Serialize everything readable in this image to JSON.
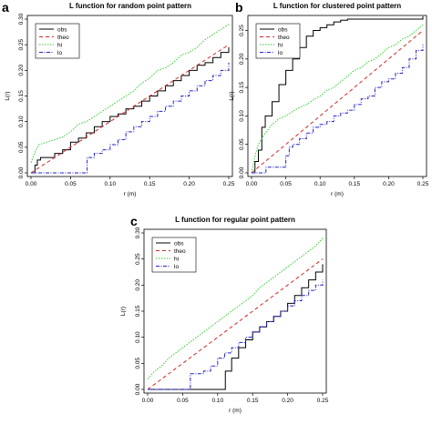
{
  "chart_data": [
    {
      "panel": "a",
      "type": "line",
      "title": "L function for random point pattern",
      "xlabel": "r (m)",
      "ylabel": "L(r)",
      "xlim": [
        0,
        0.25
      ],
      "ylim": [
        0,
        0.3
      ],
      "xticks": [
        "0.00",
        "0.05",
        "0.10",
        "0.15",
        "0.20",
        "0.25"
      ],
      "yticks": [
        "0.00",
        "0.05",
        "0.10",
        "0.15",
        "0.20",
        "0.25",
        "0.30"
      ],
      "legend_position": "top-left",
      "series": [
        {
          "name": "obs",
          "color": "#000000",
          "dash": "solid",
          "step": true,
          "x": [
            0,
            0.003,
            0.005,
            0.008,
            0.012,
            0.02,
            0.03,
            0.04,
            0.05,
            0.06,
            0.07,
            0.08,
            0.09,
            0.1,
            0.11,
            0.12,
            0.13,
            0.14,
            0.15,
            0.16,
            0.17,
            0.18,
            0.19,
            0.2,
            0.21,
            0.22,
            0.23,
            0.24,
            0.25
          ],
          "y": [
            0,
            0,
            0.015,
            0.025,
            0.03,
            0.03,
            0.038,
            0.045,
            0.06,
            0.068,
            0.078,
            0.09,
            0.1,
            0.11,
            0.115,
            0.125,
            0.13,
            0.14,
            0.15,
            0.16,
            0.17,
            0.18,
            0.19,
            0.2,
            0.21,
            0.215,
            0.225,
            0.235,
            0.245
          ]
        },
        {
          "name": "theo",
          "color": "#d62728",
          "dash": "4,3",
          "x": [
            0,
            0.25
          ],
          "y": [
            0,
            0.25
          ]
        },
        {
          "name": "hi",
          "color": "#33cc33",
          "dash": "1.5,1.5",
          "x": [
            0,
            0.005,
            0.01,
            0.02,
            0.03,
            0.04,
            0.05,
            0.06,
            0.07,
            0.08,
            0.09,
            0.1,
            0.11,
            0.12,
            0.13,
            0.14,
            0.15,
            0.16,
            0.17,
            0.18,
            0.19,
            0.2,
            0.21,
            0.22,
            0.23,
            0.24,
            0.25
          ],
          "y": [
            0.02,
            0.04,
            0.055,
            0.06,
            0.065,
            0.07,
            0.08,
            0.095,
            0.1,
            0.11,
            0.12,
            0.13,
            0.14,
            0.15,
            0.16,
            0.175,
            0.185,
            0.2,
            0.205,
            0.215,
            0.23,
            0.235,
            0.245,
            0.26,
            0.27,
            0.28,
            0.29
          ]
        },
        {
          "name": "lo",
          "color": "#2222cc",
          "dash": "4,1.5,1,1.5",
          "step": true,
          "x": [
            0,
            0.07,
            0.071,
            0.08,
            0.09,
            0.1,
            0.11,
            0.12,
            0.13,
            0.14,
            0.15,
            0.16,
            0.17,
            0.18,
            0.19,
            0.2,
            0.21,
            0.22,
            0.23,
            0.24,
            0.25
          ],
          "y": [
            0,
            0,
            0.03,
            0.038,
            0.045,
            0.055,
            0.065,
            0.08,
            0.09,
            0.1,
            0.11,
            0.12,
            0.13,
            0.14,
            0.15,
            0.16,
            0.17,
            0.18,
            0.19,
            0.2,
            0.215
          ]
        }
      ]
    },
    {
      "panel": "b",
      "type": "line",
      "title": "L function for clustered point pattern",
      "xlabel": "r (m)",
      "ylabel": "L(r)",
      "xlim": [
        0,
        0.25
      ],
      "ylim": [
        0,
        0.27
      ],
      "xticks": [
        "0.00",
        "0.05",
        "0.10",
        "0.15",
        "0.20",
        "0.25"
      ],
      "yticks": [
        "0.00",
        "0.05",
        "0.10",
        "0.15",
        "0.20",
        "0.25"
      ],
      "legend_position": "top-left",
      "series": [
        {
          "name": "obs",
          "color": "#000000",
          "dash": "solid",
          "step": true,
          "x": [
            0,
            0.005,
            0.01,
            0.015,
            0.02,
            0.03,
            0.04,
            0.05,
            0.06,
            0.07,
            0.08,
            0.09,
            0.1,
            0.11,
            0.12,
            0.13,
            0.14,
            0.15,
            0.2,
            0.245,
            0.25
          ],
          "y": [
            0,
            0.02,
            0.04,
            0.08,
            0.1,
            0.125,
            0.155,
            0.18,
            0.2,
            0.22,
            0.24,
            0.25,
            0.255,
            0.26,
            0.265,
            0.268,
            0.27,
            0.27,
            0.27,
            0.27,
            0.275
          ]
        },
        {
          "name": "theo",
          "color": "#d62728",
          "dash": "4,3",
          "x": [
            0,
            0.25
          ],
          "y": [
            0,
            0.25
          ]
        },
        {
          "name": "hi",
          "color": "#33cc33",
          "dash": "1.5,1.5",
          "x": [
            0,
            0.005,
            0.01,
            0.02,
            0.03,
            0.04,
            0.05,
            0.06,
            0.07,
            0.08,
            0.09,
            0.1,
            0.11,
            0.12,
            0.13,
            0.14,
            0.15,
            0.16,
            0.17,
            0.18,
            0.19,
            0.2,
            0.21,
            0.22,
            0.23,
            0.24,
            0.25
          ],
          "y": [
            0,
            0.03,
            0.05,
            0.07,
            0.085,
            0.095,
            0.1,
            0.108,
            0.115,
            0.12,
            0.128,
            0.135,
            0.145,
            0.15,
            0.16,
            0.17,
            0.18,
            0.185,
            0.195,
            0.2,
            0.21,
            0.22,
            0.225,
            0.235,
            0.24,
            0.25,
            0.26
          ]
        },
        {
          "name": "lo",
          "color": "#2222cc",
          "dash": "4,1.5,1,1.5",
          "step": true,
          "x": [
            0,
            0.02,
            0.021,
            0.04,
            0.05,
            0.055,
            0.06,
            0.07,
            0.08,
            0.09,
            0.1,
            0.11,
            0.12,
            0.13,
            0.14,
            0.15,
            0.16,
            0.17,
            0.18,
            0.19,
            0.2,
            0.21,
            0.22,
            0.23,
            0.24,
            0.25
          ],
          "y": [
            0,
            0,
            0.01,
            0.01,
            0.03,
            0.045,
            0.05,
            0.06,
            0.07,
            0.08,
            0.085,
            0.09,
            0.1,
            0.105,
            0.11,
            0.12,
            0.13,
            0.135,
            0.15,
            0.16,
            0.165,
            0.175,
            0.185,
            0.2,
            0.215,
            0.225
          ]
        }
      ]
    },
    {
      "panel": "c",
      "type": "line",
      "title": "L function for regular point pattern",
      "xlabel": "r (m)",
      "ylabel": "L(r)",
      "xlim": [
        0,
        0.25
      ],
      "ylim": [
        0,
        0.3
      ],
      "xticks": [
        "0.00",
        "0.05",
        "0.10",
        "0.15",
        "0.20",
        "0.25"
      ],
      "yticks": [
        "0.00",
        "0.05",
        "0.10",
        "0.15",
        "0.20",
        "0.25",
        "0.30"
      ],
      "legend_position": "top-left",
      "series": [
        {
          "name": "obs",
          "color": "#000000",
          "dash": "solid",
          "step": true,
          "x": [
            0,
            0.11,
            0.111,
            0.12,
            0.13,
            0.14,
            0.15,
            0.16,
            0.17,
            0.18,
            0.19,
            0.2,
            0.21,
            0.22,
            0.23,
            0.24,
            0.25
          ],
          "y": [
            0,
            0,
            0.035,
            0.06,
            0.08,
            0.095,
            0.11,
            0.12,
            0.13,
            0.14,
            0.15,
            0.165,
            0.18,
            0.195,
            0.21,
            0.225,
            0.24
          ]
        },
        {
          "name": "theo",
          "color": "#d62728",
          "dash": "4,3",
          "x": [
            0,
            0.25
          ],
          "y": [
            0,
            0.25
          ]
        },
        {
          "name": "hi",
          "color": "#33cc33",
          "dash": "1.5,1.5",
          "x": [
            0,
            0.01,
            0.02,
            0.03,
            0.04,
            0.05,
            0.06,
            0.07,
            0.08,
            0.09,
            0.1,
            0.11,
            0.12,
            0.13,
            0.14,
            0.15,
            0.16,
            0.17,
            0.18,
            0.19,
            0.2,
            0.21,
            0.22,
            0.23,
            0.24,
            0.25
          ],
          "y": [
            0.02,
            0.035,
            0.045,
            0.06,
            0.07,
            0.08,
            0.09,
            0.1,
            0.11,
            0.12,
            0.13,
            0.14,
            0.15,
            0.16,
            0.17,
            0.18,
            0.195,
            0.205,
            0.215,
            0.225,
            0.235,
            0.245,
            0.255,
            0.265,
            0.275,
            0.29
          ]
        },
        {
          "name": "lo",
          "color": "#2222cc",
          "dash": "4,1.5,1,1.5",
          "step": true,
          "x": [
            0,
            0.06,
            0.061,
            0.08,
            0.09,
            0.1,
            0.11,
            0.12,
            0.13,
            0.14,
            0.15,
            0.16,
            0.17,
            0.18,
            0.19,
            0.2,
            0.21,
            0.22,
            0.23,
            0.24,
            0.25
          ],
          "y": [
            0,
            0,
            0.03,
            0.035,
            0.045,
            0.06,
            0.07,
            0.08,
            0.09,
            0.1,
            0.11,
            0.12,
            0.13,
            0.14,
            0.15,
            0.16,
            0.17,
            0.18,
            0.19,
            0.2,
            0.21
          ]
        }
      ]
    }
  ]
}
